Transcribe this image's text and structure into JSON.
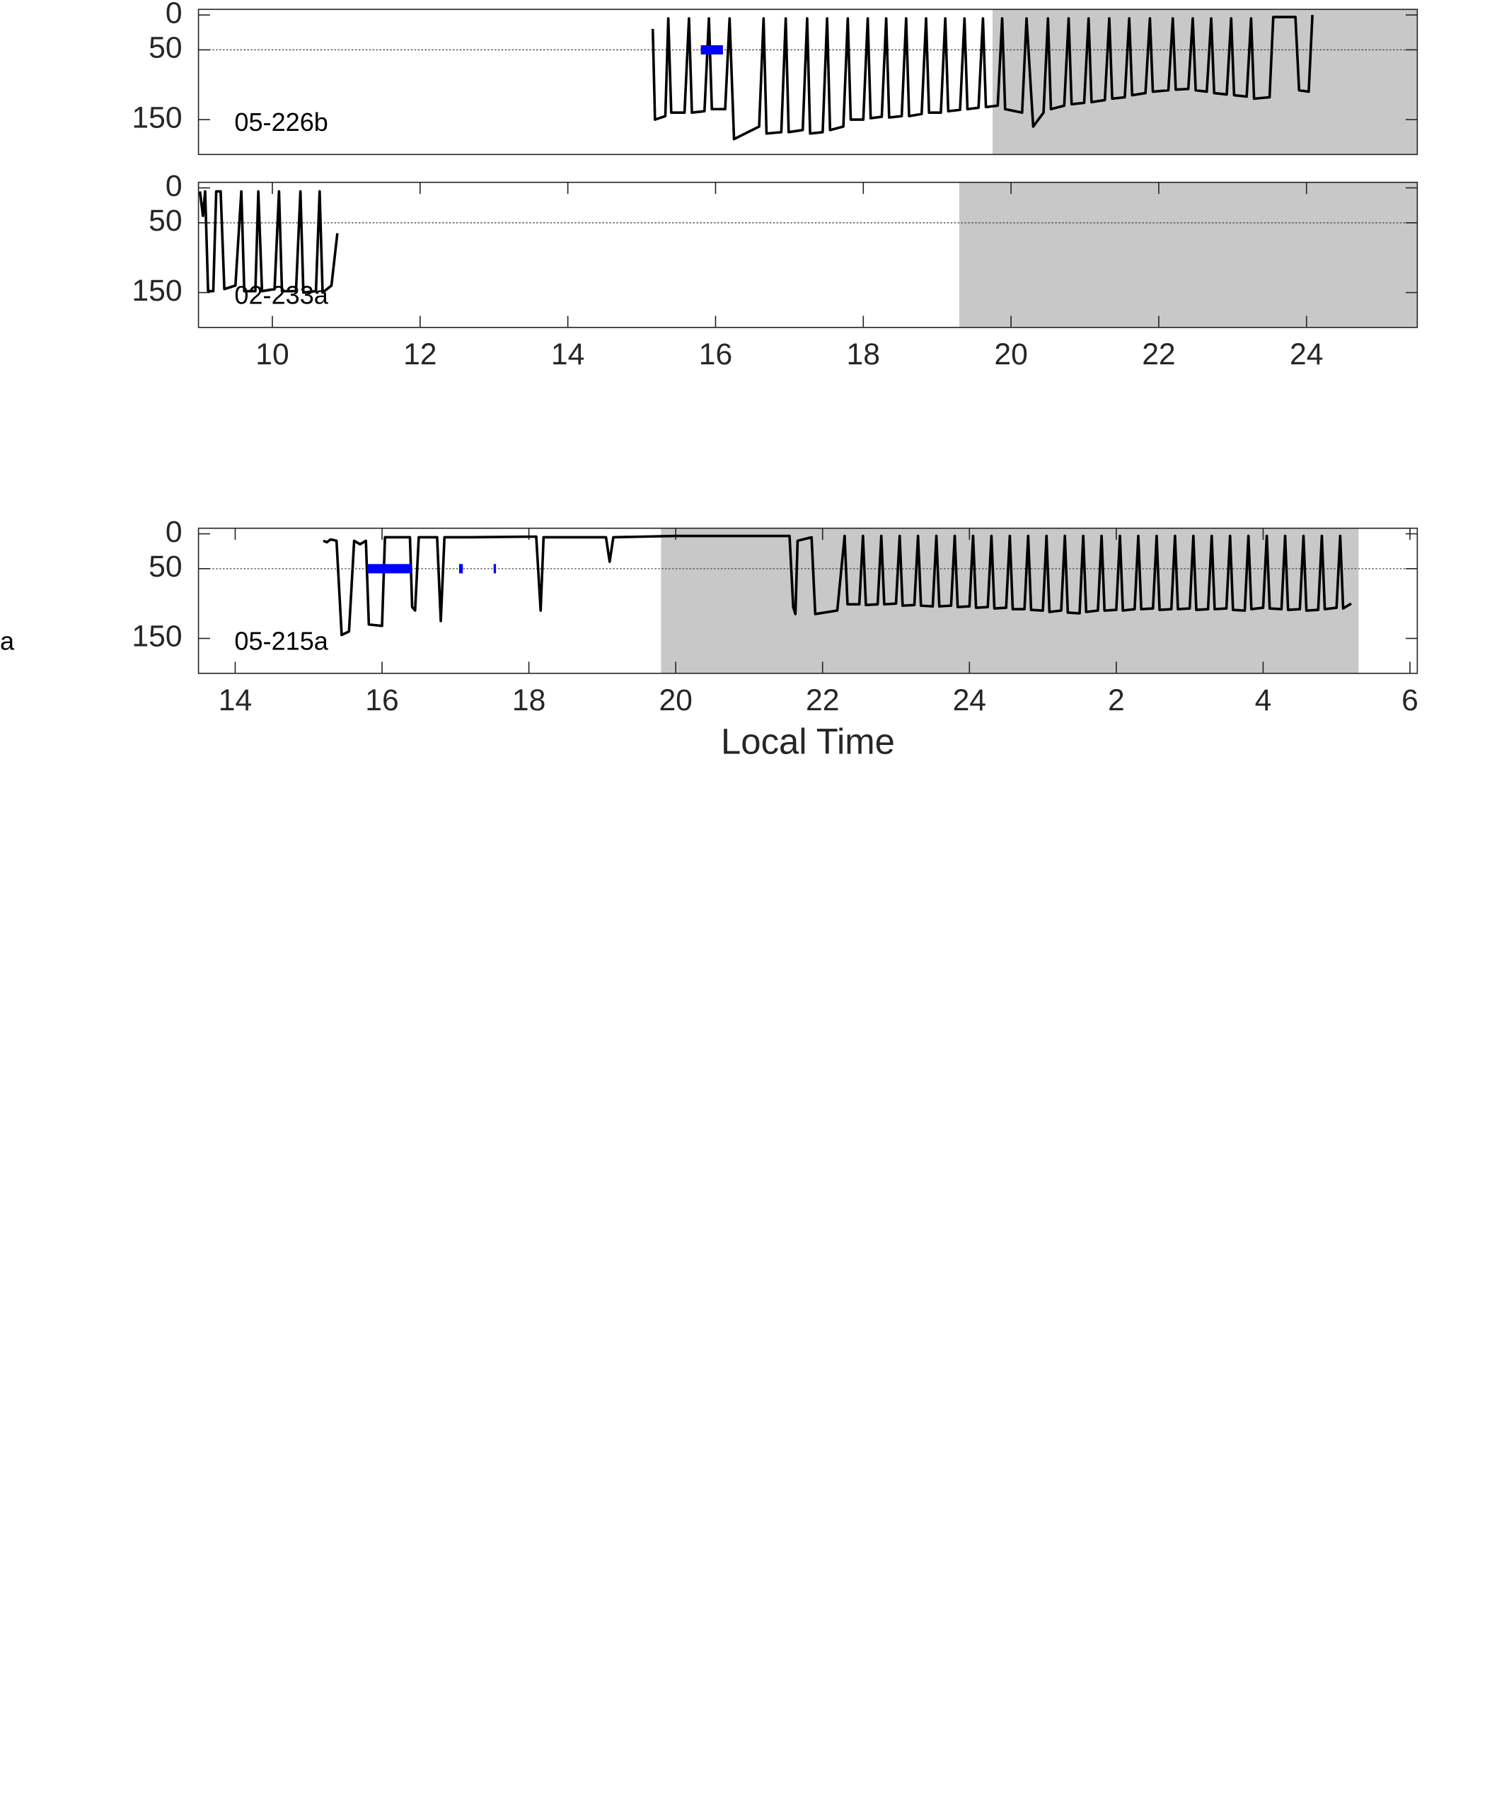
{
  "chart_data": [
    {
      "type": "line",
      "label": "05-226b",
      "xlim": [
        9,
        25.5
      ],
      "ylim": [
        -8,
        200
      ],
      "y_reversed": true,
      "yticks": [
        0,
        50,
        150
      ],
      "hline": 50,
      "shade": {
        "start": 19.75,
        "end": 25.5
      },
      "events": [
        {
          "start": 15.8,
          "end": 16.1,
          "depth": 50
        }
      ],
      "series": [
        {
          "color": "#000000",
          "x": [
            15.15,
            15.18,
            15.32,
            15.36,
            15.4,
            15.58,
            15.64,
            15.68,
            15.85,
            15.91,
            15.95,
            16.13,
            16.19,
            16.25,
            16.59,
            16.65,
            16.69,
            16.89,
            16.95,
            16.99,
            17.18,
            17.24,
            17.28,
            17.45,
            17.51,
            17.55,
            17.73,
            17.79,
            17.83,
            18.0,
            18.06,
            18.1,
            18.25,
            18.31,
            18.35,
            18.52,
            18.58,
            18.62,
            18.79,
            18.85,
            18.89,
            19.05,
            19.11,
            19.15,
            19.31,
            19.37,
            19.41,
            19.56,
            19.62,
            19.66,
            19.82,
            19.88,
            19.92,
            20.15,
            20.21,
            20.3,
            20.44,
            20.5,
            20.54,
            20.72,
            20.78,
            20.82,
            20.99,
            21.05,
            21.09,
            21.27,
            21.33,
            21.37,
            21.54,
            21.6,
            21.64,
            21.82,
            21.88,
            21.92,
            22.13,
            22.19,
            22.23,
            22.4,
            22.46,
            22.5,
            22.65,
            22.71,
            22.75,
            22.92,
            22.98,
            23.02,
            23.19,
            23.25,
            23.29,
            23.5,
            23.55,
            23.85,
            23.9,
            24.03,
            24.08
          ],
          "values": [
            20,
            150,
            145,
            5,
            140,
            140,
            5,
            140,
            138,
            5,
            135,
            135,
            5,
            178,
            160,
            5,
            170,
            168,
            5,
            168,
            165,
            5,
            170,
            168,
            5,
            165,
            160,
            5,
            150,
            150,
            5,
            148,
            146,
            5,
            147,
            145,
            5,
            145,
            142,
            5,
            140,
            140,
            5,
            138,
            136,
            5,
            135,
            133,
            5,
            132,
            130,
            5,
            135,
            140,
            5,
            160,
            140,
            5,
            135,
            130,
            5,
            128,
            126,
            5,
            125,
            122,
            5,
            120,
            118,
            5,
            115,
            112,
            5,
            110,
            108,
            5,
            107,
            106,
            5,
            108,
            110,
            5,
            112,
            114,
            5,
            115,
            117,
            5,
            120,
            118,
            3,
            3,
            108,
            110,
            0
          ]
        }
      ]
    },
    {
      "type": "line",
      "label": "02-233a",
      "xlim": [
        9,
        25.5
      ],
      "ylim": [
        -8,
        200
      ],
      "y_reversed": true,
      "yticks": [
        0,
        50,
        150
      ],
      "hline": 50,
      "xticks": [
        10,
        12,
        14,
        16,
        18,
        20,
        22,
        24
      ],
      "shade": {
        "start": 19.3,
        "end": 25.5
      },
      "series": [
        {
          "color": "#000000",
          "x": [
            9.02,
            9.06,
            9.09,
            9.13,
            9.2,
            9.24,
            9.3,
            9.35,
            9.5,
            9.58,
            9.62,
            9.77,
            9.81,
            9.86,
            10.03,
            10.09,
            10.13,
            10.32,
            10.38,
            10.42,
            10.59,
            10.64,
            10.68,
            10.8,
            10.88
          ],
          "values": [
            5,
            40,
            5,
            148,
            148,
            5,
            5,
            145,
            140,
            5,
            148,
            148,
            5,
            148,
            145,
            5,
            148,
            148,
            5,
            150,
            148,
            5,
            150,
            140,
            65
          ]
        }
      ]
    },
    {
      "type": "line",
      "label": "05-215a",
      "stray_text": "a",
      "xlabel": "Local Time",
      "xlim": [
        13.5,
        30.1
      ],
      "ylim": [
        -8,
        200
      ],
      "y_reversed": true,
      "yticks": [
        0,
        50,
        150
      ],
      "hline": 50,
      "xticks": [
        14,
        16,
        18,
        20,
        22,
        24,
        {
          "value": 26,
          "label": "2"
        },
        {
          "value": 28,
          "label": "4"
        },
        {
          "value": 30,
          "label": "6"
        }
      ],
      "shade": {
        "start": 19.8,
        "end": 29.3
      },
      "events": [
        {
          "start": 15.8,
          "end": 16.4,
          "depth": 50
        },
        {
          "start": 17.05,
          "end": 17.1,
          "depth": 50
        },
        {
          "start": 17.52,
          "end": 17.55,
          "depth": 50
        }
      ],
      "series": [
        {
          "color": "#000000",
          "x": [
            15.2,
            15.25,
            15.3,
            15.38,
            15.45,
            15.55,
            15.62,
            15.7,
            15.78,
            15.82,
            16.0,
            16.04,
            16.38,
            16.41,
            16.45,
            16.5,
            16.75,
            16.8,
            16.85,
            17.2,
            18.1,
            18.16,
            18.2,
            19.05,
            19.1,
            19.15,
            20.0,
            21.55,
            21.6,
            21.63,
            21.66,
            21.85,
            21.9,
            22.2,
            22.3,
            22.34,
            22.5,
            22.55,
            22.59,
            22.75,
            22.8,
            22.84,
            23.0,
            23.05,
            23.09,
            23.25,
            23.3,
            23.34,
            23.5,
            23.55,
            23.59,
            23.75,
            23.8,
            23.84,
            24.0,
            24.05,
            24.09,
            24.25,
            24.3,
            24.34,
            24.5,
            24.55,
            24.59,
            24.75,
            24.8,
            24.84,
            25.0,
            25.05,
            25.09,
            25.25,
            25.3,
            25.34,
            25.5,
            25.55,
            25.59,
            25.75,
            25.8,
            25.84,
            26.0,
            26.05,
            26.09,
            26.25,
            26.3,
            26.34,
            26.5,
            26.55,
            26.59,
            26.75,
            26.8,
            26.84,
            27.0,
            27.05,
            27.09,
            27.25,
            27.3,
            27.34,
            27.5,
            27.55,
            27.59,
            27.75,
            27.8,
            27.84,
            28.0,
            28.05,
            28.09,
            28.25,
            28.3,
            28.34,
            28.5,
            28.55,
            28.59,
            28.75,
            28.8,
            28.84,
            29.0,
            29.05,
            29.09,
            29.2
          ],
          "values": [
            10,
            12,
            8,
            10,
            145,
            140,
            10,
            15,
            10,
            130,
            132,
            5,
            5,
            105,
            110,
            5,
            5,
            125,
            5,
            5,
            4,
            110,
            5,
            5,
            40,
            5,
            3,
            3,
            105,
            115,
            10,
            5,
            115,
            110,
            3,
            101,
            101,
            3,
            102,
            101,
            3,
            101,
            100,
            3,
            103,
            102,
            3,
            103,
            104,
            3,
            104,
            103,
            3,
            105,
            104,
            3,
            106,
            105,
            3,
            107,
            106,
            3,
            108,
            108,
            3,
            109,
            110,
            3,
            112,
            110,
            3,
            113,
            114,
            3,
            112,
            110,
            3,
            110,
            109,
            3,
            110,
            108,
            3,
            108,
            107,
            3,
            109,
            108,
            3,
            108,
            107,
            3,
            109,
            108,
            3,
            108,
            107,
            3,
            109,
            110,
            3,
            108,
            106,
            3,
            107,
            108,
            3,
            109,
            108,
            3,
            110,
            109,
            3,
            108,
            106,
            3,
            107,
            100
          ]
        }
      ]
    }
  ]
}
